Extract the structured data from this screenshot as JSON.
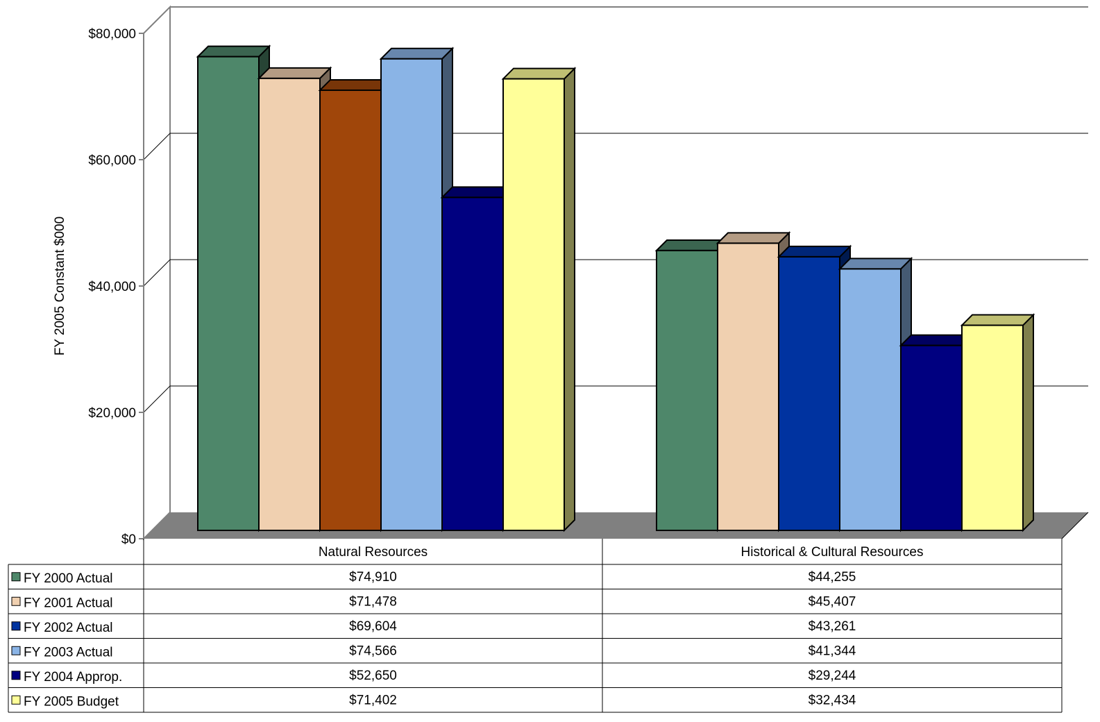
{
  "chart_data": {
    "type": "bar",
    "ylabel": "FY 2005 Constant $000",
    "ylim": [
      0,
      80000
    ],
    "yticks": [
      {
        "value": 0,
        "label": "$0"
      },
      {
        "value": 20000,
        "label": "$20,000"
      },
      {
        "value": 40000,
        "label": "$40,000"
      },
      {
        "value": 60000,
        "label": "$60,000"
      },
      {
        "value": 80000,
        "label": "$80,000"
      }
    ],
    "grid": true,
    "legend": "data-table-left",
    "categories": [
      "Natural Resources",
      "Historical & Cultural Resources"
    ],
    "series": [
      {
        "name": "FY 2000 Actual",
        "values": [
          74910,
          44255
        ],
        "labels": [
          "$74,910",
          "$44,255"
        ],
        "color": "#4e876a"
      },
      {
        "name": "FY 2001 Actual",
        "values": [
          71478,
          45407
        ],
        "labels": [
          "$71,478",
          "$45,407"
        ],
        "color": "#f0d0b0"
      },
      {
        "name": "FY 2002 Actual",
        "values": [
          69604,
          43261
        ],
        "labels": [
          "$69,604",
          "$43,261"
        ],
        "color": "#0033a0",
        "bar_colors": [
          "#a0460a",
          "#0033a0"
        ]
      },
      {
        "name": "FY 2003 Actual",
        "values": [
          74566,
          41344
        ],
        "labels": [
          "$74,566",
          "$41,344"
        ],
        "color": "#8ab4e6"
      },
      {
        "name": "FY 2004 Approp.",
        "values": [
          52650,
          29244
        ],
        "labels": [
          "$52,650",
          "$29,244"
        ],
        "color": "#000080"
      },
      {
        "name": "FY 2005 Budget",
        "values": [
          71402,
          32434
        ],
        "labels": [
          "$71,402",
          "$32,434"
        ],
        "color": "#ffff99"
      }
    ]
  }
}
